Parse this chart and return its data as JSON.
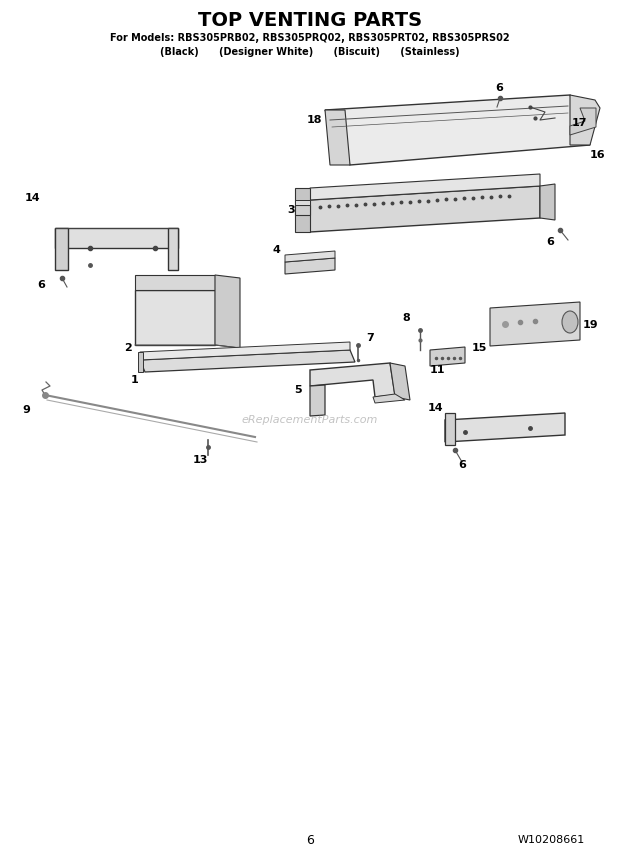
{
  "title": "TOP VENTING PARTS",
  "subtitle1": "For Models: RBS305PRB02, RBS305PRQ02, RBS305PRT02, RBS305PRS02",
  "subtitle2": "(Black)      (Designer White)      (Biscuit)      (Stainless)",
  "page_number": "6",
  "doc_number": "W10208661",
  "bg_color": "#ffffff",
  "watermark": "eReplacementParts.com"
}
